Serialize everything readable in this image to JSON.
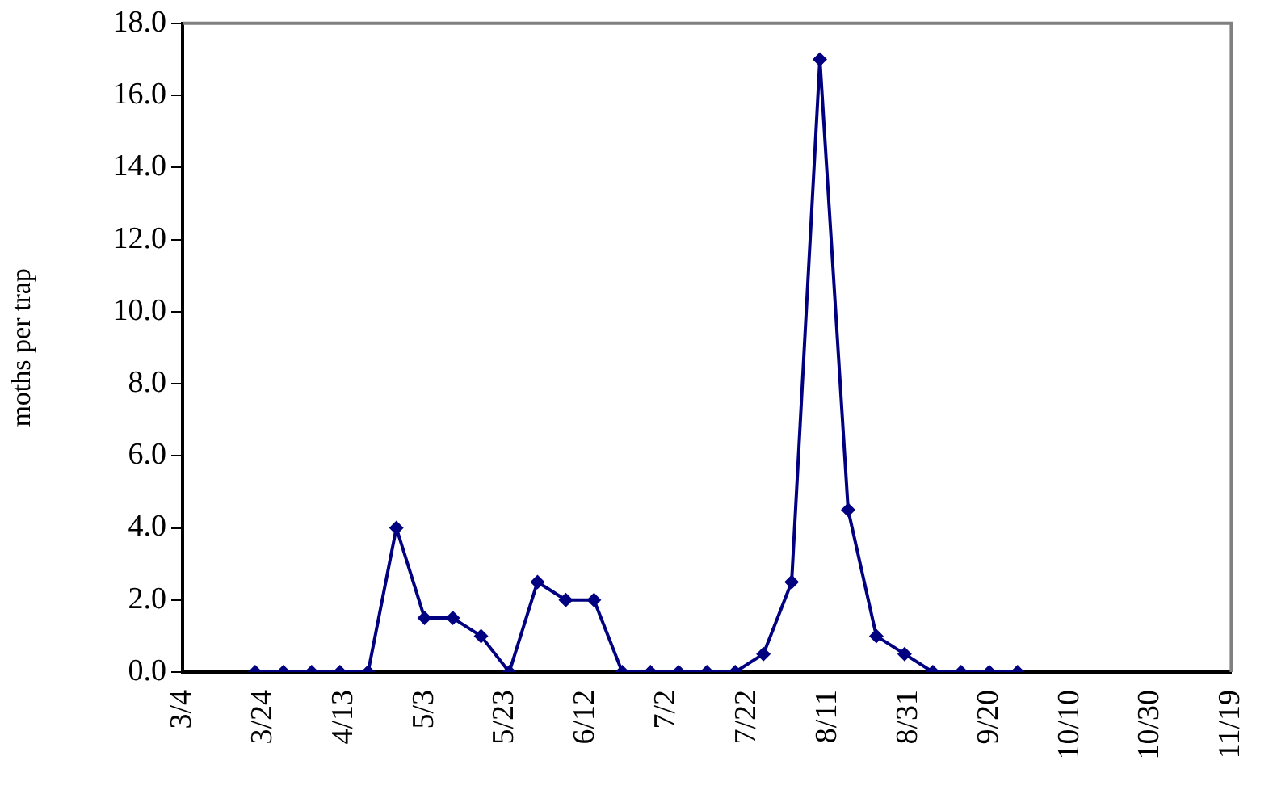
{
  "chart_data": {
    "type": "line",
    "ylabel": "moths per trap",
    "x": [
      "--03-22",
      "--03-29",
      "--04-05",
      "--04-12",
      "--04-19",
      "--04-26",
      "--05-03",
      "--05-10",
      "--05-17",
      "--05-24",
      "--05-31",
      "--06-07",
      "--06-14",
      "--06-21",
      "--06-28",
      "--07-05",
      "--07-12",
      "--07-19",
      "--07-26",
      "--08-02",
      "--08-09",
      "--08-16",
      "--08-23",
      "--08-30",
      "--09-06",
      "--09-13",
      "--09-20",
      "--09-27"
    ],
    "series": [
      {
        "color": "#000080",
        "values": [
          0,
          0,
          0,
          0,
          0,
          4.0,
          1.5,
          1.5,
          1.0,
          0,
          2.5,
          2.0,
          2.0,
          0,
          0,
          0,
          0,
          0,
          0.5,
          2.5,
          17.0,
          4.5,
          1.0,
          0.5,
          0,
          0,
          0,
          0
        ]
      }
    ],
    "xlim": [
      "--03-04",
      "--11-19"
    ],
    "xticks": [
      {
        "value": "--03-04",
        "label": "3/4"
      },
      {
        "value": "--03-24",
        "label": "3/24"
      },
      {
        "value": "--04-13",
        "label": "4/13"
      },
      {
        "value": "--05-03",
        "label": "5/3"
      },
      {
        "value": "--05-23",
        "label": "5/23"
      },
      {
        "value": "--06-12",
        "label": "6/12"
      },
      {
        "value": "--07-02",
        "label": "7/2"
      },
      {
        "value": "--07-22",
        "label": "7/22"
      },
      {
        "value": "--08-11",
        "label": "8/11"
      },
      {
        "value": "--08-31",
        "label": "8/31"
      },
      {
        "value": "--09-20",
        "label": "9/20"
      },
      {
        "value": "--10-10",
        "label": "10/10"
      },
      {
        "value": "--10-30",
        "label": "10/30"
      },
      {
        "value": "--11-19",
        "label": "11/19"
      }
    ],
    "ylim": [
      0,
      18
    ],
    "yticks": [
      {
        "value": 0,
        "label": "0.0"
      },
      {
        "value": 2,
        "label": "2.0"
      },
      {
        "value": 4,
        "label": "4.0"
      },
      {
        "value": 6,
        "label": "6.0"
      },
      {
        "value": 8,
        "label": "8.0"
      },
      {
        "value": 10,
        "label": "10.0"
      },
      {
        "value": 12,
        "label": "12.0"
      },
      {
        "value": 14,
        "label": "14.0"
      },
      {
        "value": 16,
        "label": "16.0"
      },
      {
        "value": 18,
        "label": "18.0"
      }
    ],
    "grid": false,
    "legend": false,
    "marker": "diamond",
    "line_style": "solid"
  }
}
